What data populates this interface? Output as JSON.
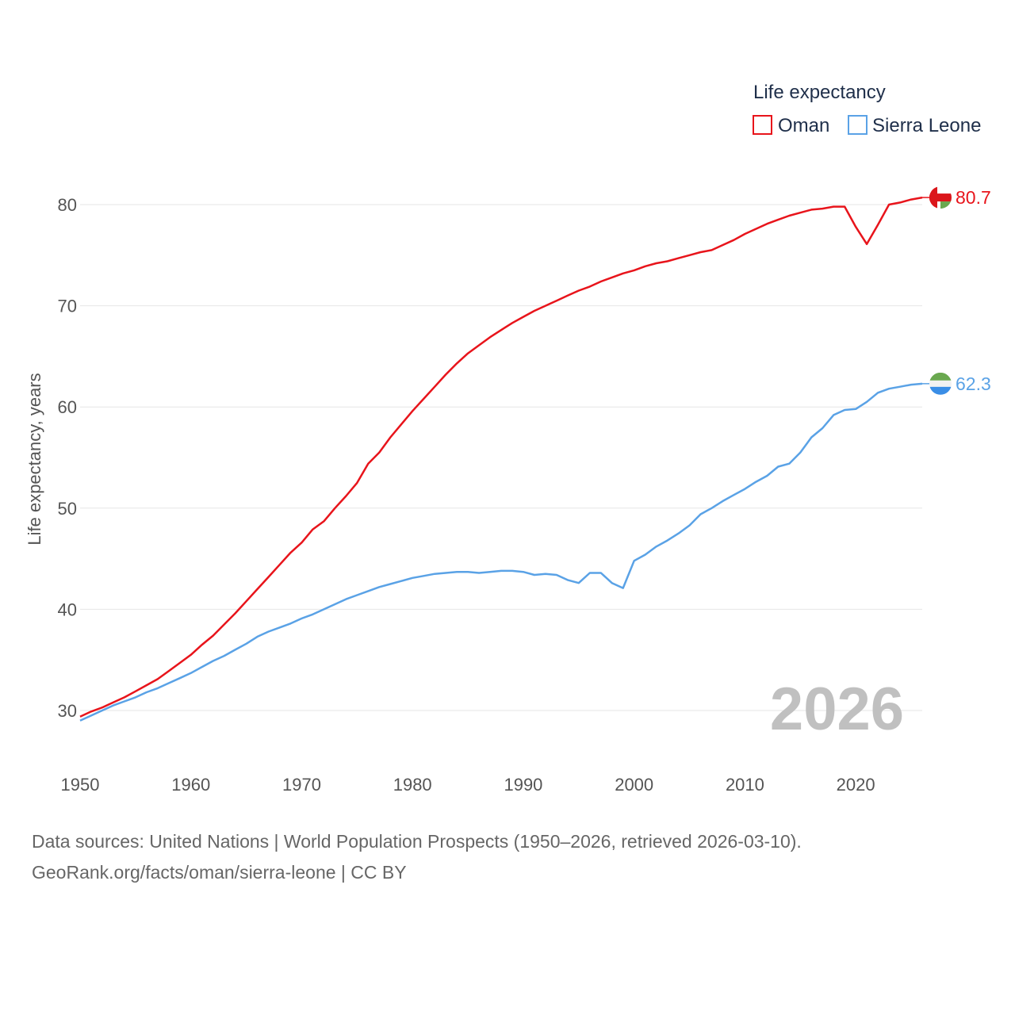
{
  "chart_data": {
    "type": "line",
    "legend_title": "Life expectancy",
    "ylabel": "Life expectancy, years",
    "xlim": [
      1950,
      2026
    ],
    "ylim": [
      25,
      85
    ],
    "x_ticks": [
      1950,
      1960,
      1970,
      1980,
      1990,
      2000,
      2010,
      2020
    ],
    "y_ticks": [
      30,
      40,
      50,
      60,
      70,
      80
    ],
    "grid": true,
    "legend_position": "top-right",
    "current_year": "2026",
    "series": [
      {
        "name": "Oman",
        "color": "#e8141b",
        "end_label": "80.7",
        "flag": "oman-flag",
        "x": [
          1950,
          1951,
          1952,
          1953,
          1954,
          1955,
          1956,
          1957,
          1958,
          1959,
          1960,
          1961,
          1962,
          1963,
          1964,
          1965,
          1966,
          1967,
          1968,
          1969,
          1970,
          1971,
          1972,
          1973,
          1974,
          1975,
          1976,
          1977,
          1978,
          1979,
          1980,
          1981,
          1982,
          1983,
          1984,
          1985,
          1986,
          1987,
          1988,
          1989,
          1990,
          1991,
          1992,
          1993,
          1994,
          1995,
          1996,
          1997,
          1998,
          1999,
          2000,
          2001,
          2002,
          2003,
          2004,
          2005,
          2006,
          2007,
          2008,
          2009,
          2010,
          2011,
          2012,
          2013,
          2014,
          2015,
          2016,
          2017,
          2018,
          2019,
          2020,
          2021,
          2022,
          2023,
          2024,
          2025,
          2026
        ],
        "values": [
          29.4,
          29.9,
          30.3,
          30.8,
          31.3,
          31.9,
          32.5,
          33.1,
          33.9,
          34.7,
          35.5,
          36.5,
          37.4,
          38.5,
          39.6,
          40.8,
          42.0,
          43.2,
          44.4,
          45.6,
          46.6,
          47.9,
          48.7,
          50.0,
          51.2,
          52.5,
          54.4,
          55.5,
          57.0,
          58.3,
          59.6,
          60.8,
          62.0,
          63.2,
          64.3,
          65.3,
          66.1,
          66.9,
          67.6,
          68.3,
          68.9,
          69.5,
          70.0,
          70.5,
          71.0,
          71.5,
          71.9,
          72.4,
          72.8,
          73.2,
          73.5,
          73.9,
          74.2,
          74.4,
          74.7,
          75.0,
          75.3,
          75.5,
          76.0,
          76.5,
          77.1,
          77.6,
          78.1,
          78.5,
          78.9,
          79.2,
          79.5,
          79.6,
          79.8,
          79.8,
          77.8,
          76.1,
          78.0,
          80.0,
          80.2,
          80.5,
          80.7
        ]
      },
      {
        "name": "Sierra Leone",
        "color": "#5aa2e6",
        "end_label": "62.3",
        "flag": "sierra-leone-flag",
        "x": [
          1950,
          1951,
          1952,
          1953,
          1954,
          1955,
          1956,
          1957,
          1958,
          1959,
          1960,
          1961,
          1962,
          1963,
          1964,
          1965,
          1966,
          1967,
          1968,
          1969,
          1970,
          1971,
          1972,
          1973,
          1974,
          1975,
          1976,
          1977,
          1978,
          1979,
          1980,
          1981,
          1982,
          1983,
          1984,
          1985,
          1986,
          1987,
          1988,
          1989,
          1990,
          1991,
          1992,
          1993,
          1994,
          1995,
          1996,
          1997,
          1998,
          1999,
          2000,
          2001,
          2002,
          2003,
          2004,
          2005,
          2006,
          2007,
          2008,
          2009,
          2010,
          2011,
          2012,
          2013,
          2014,
          2015,
          2016,
          2017,
          2018,
          2019,
          2020,
          2021,
          2022,
          2023,
          2024,
          2025,
          2026
        ],
        "values": [
          29.0,
          29.5,
          30.0,
          30.5,
          30.9,
          31.3,
          31.8,
          32.2,
          32.7,
          33.2,
          33.7,
          34.3,
          34.9,
          35.4,
          36.0,
          36.6,
          37.3,
          37.8,
          38.2,
          38.6,
          39.1,
          39.5,
          40.0,
          40.5,
          41.0,
          41.4,
          41.8,
          42.2,
          42.5,
          42.8,
          43.1,
          43.3,
          43.5,
          43.6,
          43.7,
          43.7,
          43.6,
          43.7,
          43.8,
          43.8,
          43.7,
          43.4,
          43.5,
          43.4,
          42.9,
          42.6,
          43.6,
          43.6,
          42.6,
          42.1,
          44.8,
          45.4,
          46.2,
          46.8,
          47.5,
          48.3,
          49.4,
          50.0,
          50.7,
          51.3,
          51.9,
          52.6,
          53.2,
          54.1,
          54.4,
          55.5,
          57.0,
          57.9,
          59.2,
          59.7,
          59.8,
          60.5,
          61.4,
          61.8,
          62.0,
          62.2,
          62.3
        ]
      }
    ]
  },
  "source": {
    "line1": "Data sources: United Nations | World Population Prospects (1950–2026, retrieved 2026-03-10).",
    "line2": "GeoRank.org/facts/oman/sierra-leone | CC BY"
  }
}
